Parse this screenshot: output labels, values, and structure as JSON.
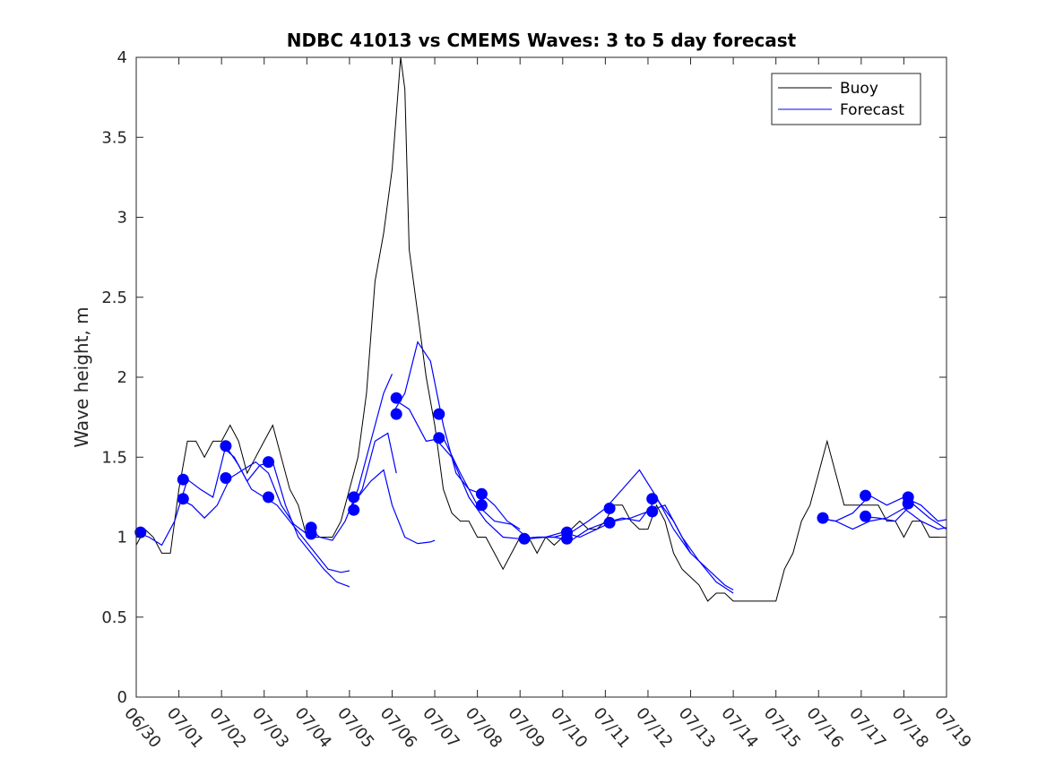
{
  "chart_data": {
    "type": "line",
    "title": "NDBC 41013 vs CMEMS Waves: 3 to 5 day forecast",
    "xlabel": "",
    "ylabel": "Wave height, m",
    "xlim": [
      "06/30",
      "07/19"
    ],
    "ylim": [
      0,
      4
    ],
    "x_tick_labels": [
      "06/30",
      "07/01",
      "07/02",
      "07/03",
      "07/04",
      "07/05",
      "07/06",
      "07/07",
      "07/08",
      "07/09",
      "07/10",
      "07/11",
      "07/12",
      "07/13",
      "07/14",
      "07/15",
      "07/16",
      "07/17",
      "07/18",
      "07/19"
    ],
    "y_tick_labels": [
      "0",
      "0.5",
      "1",
      "1.5",
      "2",
      "2.5",
      "3",
      "3.5",
      "4"
    ],
    "grid": false,
    "legend": {
      "placement": "top-right",
      "entries": [
        "Buoy",
        "Forecast"
      ]
    },
    "colors": {
      "buoy": "#000000",
      "forecast": "#0000ff",
      "markers": "#0000ff"
    },
    "series": [
      {
        "name": "Buoy",
        "x_days": [
          0,
          0.2,
          0.4,
          0.6,
          0.8,
          1.0,
          1.2,
          1.4,
          1.6,
          1.8,
          2.0,
          2.2,
          2.4,
          2.6,
          2.8,
          3.0,
          3.2,
          3.4,
          3.6,
          3.8,
          4.0,
          4.2,
          4.4,
          4.6,
          4.8,
          5.0,
          5.2,
          5.4,
          5.6,
          5.8,
          6.0,
          6.2,
          6.3,
          6.4,
          6.6,
          6.8,
          7.0,
          7.2,
          7.4,
          7.6,
          7.8,
          8.0,
          8.2,
          8.4,
          8.6,
          8.8,
          9.0,
          9.2,
          9.4,
          9.6,
          9.8,
          10.0,
          10.2,
          10.4,
          10.6,
          10.8,
          11.0,
          11.2,
          11.4,
          11.6,
          11.8,
          12.0,
          12.2,
          12.4,
          12.6,
          12.8,
          13.0,
          13.2,
          13.4,
          13.6,
          13.8,
          14.0,
          14.2,
          14.4,
          14.6,
          14.8,
          15.0,
          15.2,
          15.4,
          15.6,
          15.8,
          16.0,
          16.2,
          16.4,
          16.6,
          16.8,
          17.0,
          17.2,
          17.4,
          17.6,
          17.8,
          18.0,
          18.2,
          18.4,
          18.6,
          18.8,
          19.0
        ],
        "values": [
          0.95,
          1.05,
          1.0,
          0.9,
          0.9,
          1.3,
          1.6,
          1.6,
          1.5,
          1.6,
          1.6,
          1.7,
          1.6,
          1.4,
          1.5,
          1.6,
          1.7,
          1.5,
          1.3,
          1.2,
          1.0,
          1.0,
          1.0,
          1.0,
          1.1,
          1.3,
          1.5,
          1.9,
          2.6,
          2.9,
          3.3,
          4.0,
          3.8,
          2.8,
          2.4,
          2.0,
          1.7,
          1.3,
          1.15,
          1.1,
          1.1,
          1.0,
          1.0,
          0.9,
          0.8,
          0.9,
          1.0,
          1.0,
          0.9,
          1.0,
          0.95,
          1.0,
          1.05,
          1.1,
          1.05,
          1.05,
          1.1,
          1.2,
          1.2,
          1.1,
          1.05,
          1.05,
          1.2,
          1.1,
          0.9,
          0.8,
          0.75,
          0.7,
          0.6,
          0.65,
          0.65,
          0.6,
          0.6,
          0.6,
          0.6,
          0.6,
          0.6,
          0.8,
          0.9,
          1.1,
          1.2,
          1.4,
          1.6,
          1.4,
          1.2,
          1.2,
          1.2,
          1.2,
          1.2,
          1.1,
          1.1,
          1.0,
          1.1,
          1.1,
          1.0,
          1.0,
          1.0
        ]
      },
      {
        "name": "Forecast",
        "runs": [
          {
            "x_days": [
              0,
              0.3,
              0.6,
              0.9,
              1.2,
              1.5,
              1.8,
              2.1,
              2.4,
              2.7,
              3.0
            ],
            "values": [
              1.03,
              1.0,
              0.95,
              1.1,
              1.36,
              1.3,
              1.25,
              1.57,
              1.45,
              1.3,
              1.25
            ]
          },
          {
            "x_days": [
              1.0,
              1.3,
              1.6,
              1.9,
              2.2,
              2.5,
              2.8,
              3.1,
              3.4,
              3.7,
              4.0
            ],
            "values": [
              1.24,
              1.2,
              1.12,
              1.2,
              1.37,
              1.42,
              1.47,
              1.4,
              1.2,
              1.08,
              1.02
            ]
          },
          {
            "x_days": [
              2.0,
              2.3,
              2.6,
              2.9,
              3.2,
              3.5,
              3.8,
              4.1,
              4.4,
              4.7,
              5.0
            ],
            "values": [
              1.57,
              1.5,
              1.35,
              1.45,
              1.47,
              1.2,
              1.0,
              0.9,
              0.8,
              0.72,
              0.69
            ]
          },
          {
            "x_days": [
              3.0,
              3.3,
              3.6,
              3.9,
              4.2,
              4.5,
              4.8,
              5.0
            ],
            "values": [
              1.25,
              1.2,
              1.1,
              1.0,
              0.9,
              0.8,
              0.78,
              0.79
            ]
          },
          {
            "x_days": [
              4.0,
              4.3,
              4.6,
              4.9,
              5.2,
              5.5,
              5.8,
              6.0
            ],
            "values": [
              1.07,
              1.0,
              0.98,
              1.1,
              1.3,
              1.6,
              1.9,
              2.02
            ]
          },
          {
            "x_days": [
              5.0,
              5.3,
              5.6,
              5.9,
              6.1
            ],
            "values": [
              1.17,
              1.3,
              1.6,
              1.65,
              1.4
            ]
          },
          {
            "x_days": [
              5.2,
              5.5,
              5.8,
              6.0,
              6.3,
              6.6,
              6.9,
              7.0
            ],
            "values": [
              1.25,
              1.35,
              1.42,
              1.2,
              1.0,
              0.96,
              0.97,
              0.98
            ]
          },
          {
            "x_days": [
              6.0,
              6.3,
              6.6,
              6.9,
              7.2,
              7.5,
              7.8,
              8.1,
              8.4,
              8.7,
              9.0
            ],
            "values": [
              1.77,
              1.9,
              2.22,
              2.1,
              1.7,
              1.4,
              1.3,
              1.27,
              1.2,
              1.1,
              1.05
            ]
          },
          {
            "x_days": [
              6.0,
              6.4,
              6.8,
              7.2,
              7.6,
              8.0,
              8.4,
              8.8,
              9.2,
              9.6,
              10.0
            ],
            "values": [
              1.87,
              1.8,
              1.6,
              1.62,
              1.4,
              1.2,
              1.1,
              1.08,
              0.99,
              1.0,
              1.03
            ]
          },
          {
            "x_days": [
              7.0,
              7.4,
              7.8,
              8.2,
              8.6,
              9.0,
              9.4,
              9.8,
              10.2,
              10.6,
              11.0
            ],
            "values": [
              1.62,
              1.5,
              1.25,
              1.1,
              1.0,
              0.99,
              1.0,
              1.0,
              0.98,
              1.05,
              1.09
            ]
          },
          {
            "x_days": [
              9.0,
              9.4,
              9.8,
              10.2,
              10.6,
              11.0,
              11.4,
              11.8,
              12.2,
              12.6,
              13.0
            ],
            "values": [
              0.99,
              1.0,
              1.0,
              1.03,
              1.1,
              1.18,
              1.3,
              1.42,
              1.25,
              1.05,
              0.9
            ]
          },
          {
            "x_days": [
              10.0,
              10.4,
              10.8,
              11.2,
              11.6,
              12.0,
              12.4,
              12.8,
              13.2,
              13.6,
              14.0
            ],
            "values": [
              1.03,
              1.0,
              1.05,
              1.1,
              1.12,
              1.16,
              1.2,
              1.0,
              0.85,
              0.72,
              0.65
            ]
          },
          {
            "x_days": [
              11.0,
              11.4,
              11.8,
              12.2,
              12.6,
              13.0,
              13.4,
              13.8,
              14.0
            ],
            "values": [
              1.09,
              1.12,
              1.1,
              1.24,
              1.1,
              0.9,
              0.8,
              0.7,
              0.67
            ]
          },
          {
            "x_days": [
              16.0,
              16.4,
              16.8,
              17.2,
              17.6,
              18.0,
              18.4,
              18.8,
              19.0
            ],
            "values": [
              1.12,
              1.1,
              1.15,
              1.26,
              1.2,
              1.25,
              1.2,
              1.1,
              1.11
            ]
          },
          {
            "x_days": [
              17.0,
              17.4,
              17.8,
              18.2,
              18.6,
              19.0
            ],
            "values": [
              1.13,
              1.12,
              1.1,
              1.21,
              1.12,
              1.05
            ]
          },
          {
            "x_days": [
              16.0,
              16.4,
              16.8,
              17.2,
              17.6,
              18.0,
              18.4,
              18.8,
              19.0
            ],
            "values": [
              1.12,
              1.1,
              1.05,
              1.1,
              1.12,
              1.18,
              1.1,
              1.05,
              1.06
            ]
          }
        ]
      }
    ],
    "markers": {
      "x_days": [
        0.1,
        1.1,
        1.1,
        2.1,
        2.1,
        3.1,
        3.1,
        4.1,
        4.1,
        5.1,
        5.1,
        6.1,
        6.1,
        7.1,
        7.1,
        8.1,
        8.1,
        9.1,
        10.1,
        10.1,
        11.1,
        11.1,
        12.1,
        12.1,
        16.1,
        17.1,
        17.1,
        18.1,
        18.1
      ],
      "values": [
        1.03,
        1.36,
        1.24,
        1.57,
        1.37,
        1.47,
        1.25,
        1.06,
        1.02,
        1.25,
        1.17,
        1.87,
        1.77,
        1.77,
        1.62,
        1.27,
        1.2,
        0.99,
        1.03,
        0.99,
        1.18,
        1.09,
        1.24,
        1.16,
        1.12,
        1.26,
        1.13,
        1.25,
        1.21
      ]
    }
  }
}
